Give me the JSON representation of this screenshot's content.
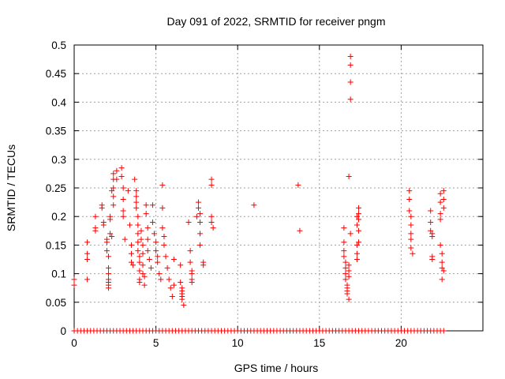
{
  "chart_data": {
    "type": "scatter",
    "title": "Day 091 of 2022, SRMTID for receiver pngm",
    "xlabel": "GPS time / hours",
    "ylabel": "SRMTID / TECUs",
    "xlim": [
      0,
      25
    ],
    "ylim": [
      0,
      0.5
    ],
    "grid": true,
    "x_ticks": [
      "0",
      "5",
      "10",
      "15",
      "20"
    ],
    "y_ticks": [
      "0",
      "0.05",
      "0.1",
      "0.15",
      "0.2",
      "0.25",
      "0.3",
      "0.35",
      "0.4",
      "0.45",
      "0.5"
    ],
    "marker_color": "#ff0000",
    "series": [
      {
        "name": "SRMTID",
        "points": [
          [
            0.0,
            0.09
          ],
          [
            0.0,
            0.08
          ],
          [
            0.8,
            0.155
          ],
          [
            0.8,
            0.135
          ],
          [
            0.8,
            0.125
          ],
          [
            0.8,
            0.09
          ],
          [
            1.3,
            0.2
          ],
          [
            1.3,
            0.18
          ],
          [
            1.3,
            0.175
          ],
          [
            1.7,
            0.22
          ],
          [
            1.7,
            0.215
          ],
          [
            1.8,
            0.19
          ],
          [
            1.8,
            0.185
          ],
          [
            2.0,
            0.16
          ],
          [
            2.0,
            0.155
          ],
          [
            2.0,
            0.14
          ],
          [
            2.1,
            0.13
          ],
          [
            2.1,
            0.11
          ],
          [
            2.1,
            0.1
          ],
          [
            2.1,
            0.09
          ],
          [
            2.1,
            0.085
          ],
          [
            2.1,
            0.08
          ],
          [
            2.1,
            0.075
          ],
          [
            2.2,
            0.2
          ],
          [
            2.2,
            0.195
          ],
          [
            2.2,
            0.17
          ],
          [
            2.3,
            0.165
          ],
          [
            2.3,
            0.245
          ],
          [
            2.4,
            0.25
          ],
          [
            2.4,
            0.265
          ],
          [
            2.4,
            0.275
          ],
          [
            2.4,
            0.235
          ],
          [
            2.4,
            0.22
          ],
          [
            2.6,
            0.28
          ],
          [
            2.6,
            0.265
          ],
          [
            2.9,
            0.285
          ],
          [
            2.9,
            0.27
          ],
          [
            3.0,
            0.25
          ],
          [
            3.0,
            0.23
          ],
          [
            3.0,
            0.21
          ],
          [
            3.0,
            0.2
          ],
          [
            3.1,
            0.16
          ],
          [
            3.3,
            0.245
          ],
          [
            3.4,
            0.185
          ],
          [
            3.5,
            0.15
          ],
          [
            3.5,
            0.135
          ],
          [
            3.5,
            0.12
          ],
          [
            3.6,
            0.115
          ],
          [
            3.7,
            0.265
          ],
          [
            3.8,
            0.245
          ],
          [
            3.8,
            0.235
          ],
          [
            3.8,
            0.225
          ],
          [
            3.8,
            0.215
          ],
          [
            3.9,
            0.2
          ],
          [
            3.9,
            0.185
          ],
          [
            3.9,
            0.17
          ],
          [
            3.9,
            0.155
          ],
          [
            3.9,
            0.14
          ],
          [
            4.0,
            0.13
          ],
          [
            4.0,
            0.12
          ],
          [
            4.0,
            0.105
          ],
          [
            4.0,
            0.09
          ],
          [
            4.0,
            0.085
          ],
          [
            4.1,
            0.175
          ],
          [
            4.1,
            0.16
          ],
          [
            4.2,
            0.15
          ],
          [
            4.2,
            0.135
          ],
          [
            4.2,
            0.115
          ],
          [
            4.2,
            0.1
          ],
          [
            4.3,
            0.095
          ],
          [
            4.3,
            0.08
          ],
          [
            4.4,
            0.22
          ],
          [
            4.4,
            0.205
          ],
          [
            4.5,
            0.18
          ],
          [
            4.5,
            0.16
          ],
          [
            4.5,
            0.14
          ],
          [
            4.6,
            0.125
          ],
          [
            4.7,
            0.11
          ],
          [
            4.8,
            0.22
          ],
          [
            4.8,
            0.19
          ],
          [
            4.9,
            0.17
          ],
          [
            5.0,
            0.155
          ],
          [
            5.0,
            0.14
          ],
          [
            5.1,
            0.13
          ],
          [
            5.1,
            0.12
          ],
          [
            5.2,
            0.1
          ],
          [
            5.3,
            0.09
          ],
          [
            5.4,
            0.255
          ],
          [
            5.4,
            0.215
          ],
          [
            5.4,
            0.18
          ],
          [
            5.5,
            0.165
          ],
          [
            5.5,
            0.15
          ],
          [
            5.6,
            0.13
          ],
          [
            5.7,
            0.11
          ],
          [
            5.8,
            0.09
          ],
          [
            5.9,
            0.075
          ],
          [
            6.0,
            0.06
          ],
          [
            6.1,
            0.125
          ],
          [
            6.1,
            0.08
          ],
          [
            6.5,
            0.115
          ],
          [
            6.5,
            0.085
          ],
          [
            6.6,
            0.075
          ],
          [
            6.6,
            0.07
          ],
          [
            6.6,
            0.065
          ],
          [
            6.6,
            0.06
          ],
          [
            6.6,
            0.055
          ],
          [
            6.7,
            0.045
          ],
          [
            7.0,
            0.19
          ],
          [
            7.1,
            0.14
          ],
          [
            7.1,
            0.12
          ],
          [
            7.2,
            0.105
          ],
          [
            7.2,
            0.1
          ],
          [
            7.2,
            0.09
          ],
          [
            7.2,
            0.085
          ],
          [
            7.5,
            0.2
          ],
          [
            7.6,
            0.225
          ],
          [
            7.6,
            0.215
          ],
          [
            7.7,
            0.205
          ],
          [
            7.7,
            0.19
          ],
          [
            7.7,
            0.17
          ],
          [
            7.7,
            0.15
          ],
          [
            7.9,
            0.12
          ],
          [
            7.9,
            0.115
          ],
          [
            8.4,
            0.265
          ],
          [
            8.4,
            0.255
          ],
          [
            8.4,
            0.2
          ],
          [
            8.4,
            0.19
          ],
          [
            8.5,
            0.18
          ],
          [
            11.0,
            0.22
          ],
          [
            13.7,
            0.255
          ],
          [
            13.8,
            0.175
          ],
          [
            16.5,
            0.18
          ],
          [
            16.5,
            0.155
          ],
          [
            16.5,
            0.14
          ],
          [
            16.5,
            0.13
          ],
          [
            16.6,
            0.12
          ],
          [
            16.6,
            0.11
          ],
          [
            16.6,
            0.1
          ],
          [
            16.6,
            0.09
          ],
          [
            16.7,
            0.08
          ],
          [
            16.7,
            0.075
          ],
          [
            16.7,
            0.07
          ],
          [
            16.7,
            0.065
          ],
          [
            16.8,
            0.105
          ],
          [
            16.8,
            0.095
          ],
          [
            16.8,
            0.115
          ],
          [
            16.8,
            0.27
          ],
          [
            16.8,
            0.055
          ],
          [
            16.9,
            0.48
          ],
          [
            16.9,
            0.465
          ],
          [
            16.9,
            0.435
          ],
          [
            16.9,
            0.405
          ],
          [
            16.9,
            0.17
          ],
          [
            17.3,
            0.2
          ],
          [
            17.3,
            0.185
          ],
          [
            17.3,
            0.15
          ],
          [
            17.3,
            0.135
          ],
          [
            17.3,
            0.125
          ],
          [
            17.4,
            0.215
          ],
          [
            17.4,
            0.205
          ],
          [
            17.4,
            0.195
          ],
          [
            17.4,
            0.175
          ],
          [
            17.4,
            0.155
          ],
          [
            20.5,
            0.245
          ],
          [
            20.5,
            0.23
          ],
          [
            20.5,
            0.21
          ],
          [
            20.6,
            0.2
          ],
          [
            20.6,
            0.185
          ],
          [
            20.6,
            0.17
          ],
          [
            20.6,
            0.16
          ],
          [
            20.6,
            0.145
          ],
          [
            20.7,
            0.135
          ],
          [
            21.8,
            0.21
          ],
          [
            21.8,
            0.19
          ],
          [
            21.8,
            0.175
          ],
          [
            21.9,
            0.17
          ],
          [
            21.9,
            0.165
          ],
          [
            21.9,
            0.13
          ],
          [
            21.9,
            0.125
          ],
          [
            22.4,
            0.24
          ],
          [
            22.4,
            0.225
          ],
          [
            22.4,
            0.205
          ],
          [
            22.4,
            0.195
          ],
          [
            22.4,
            0.15
          ],
          [
            22.5,
            0.135
          ],
          [
            22.5,
            0.12
          ],
          [
            22.5,
            0.11
          ],
          [
            22.5,
            0.09
          ],
          [
            22.6,
            0.245
          ],
          [
            22.6,
            0.23
          ],
          [
            22.6,
            0.215
          ],
          [
            22.6,
            0.105
          ]
        ],
        "zero_baseline_x": [
          0.0,
          0.2,
          0.4,
          0.6,
          0.8,
          1.0,
          1.2,
          1.4,
          1.6,
          1.8,
          2.0,
          2.2,
          2.4,
          2.6,
          2.8,
          3.0,
          3.2,
          3.4,
          3.6,
          3.8,
          4.0,
          4.2,
          4.4,
          4.6,
          4.8,
          5.0,
          5.2,
          5.4,
          5.6,
          5.8,
          6.0,
          6.2,
          6.4,
          6.6,
          6.8,
          7.0,
          7.2,
          7.4,
          7.6,
          7.8,
          8.0,
          8.2,
          8.4,
          8.6,
          8.8,
          9.0,
          9.2,
          9.4,
          9.6,
          9.8,
          10.0,
          10.2,
          10.4,
          10.6,
          10.8,
          11.0,
          11.2,
          11.4,
          11.6,
          11.8,
          12.0,
          12.2,
          12.4,
          12.6,
          12.8,
          13.0,
          13.2,
          13.4,
          13.6,
          13.8,
          14.0,
          14.2,
          14.4,
          14.6,
          14.8,
          15.0,
          15.2,
          15.4,
          15.6,
          15.8,
          16.0,
          16.2,
          16.4,
          16.6,
          16.8,
          17.0,
          17.2,
          17.4,
          17.6,
          17.8,
          18.0,
          18.2,
          18.4,
          18.6,
          18.8,
          19.0,
          19.2,
          19.4,
          19.6,
          19.8,
          20.0,
          20.2,
          20.4,
          20.6,
          20.8,
          21.0,
          21.2,
          21.4,
          21.6,
          21.8,
          22.0,
          22.2,
          22.4,
          22.6
        ]
      }
    ]
  }
}
